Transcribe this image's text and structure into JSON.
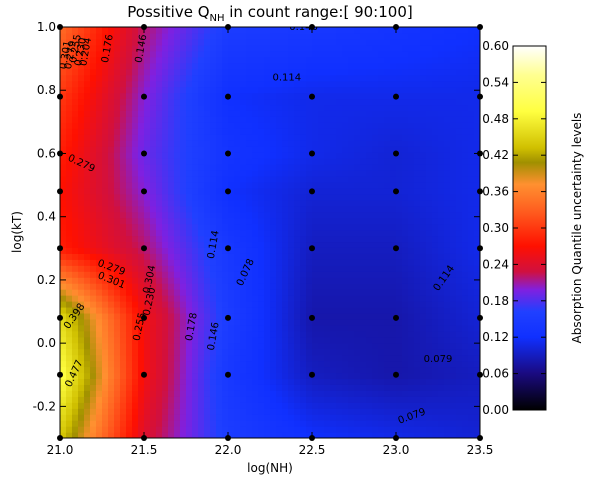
{
  "chart_data": {
    "type": "heatmap",
    "title": {
      "main": "Possitive Q",
      "sub": "NH",
      "rest": " in count range:[ 90:100]"
    },
    "xlabel": "log(NH)",
    "ylabel": "log(kT)",
    "xlim": [
      21.0,
      23.5
    ],
    "ylim": [
      -0.3,
      1.0
    ],
    "x_ticks": [
      "21.0",
      "21.5",
      "22.0",
      "22.5",
      "23.0",
      "23.5"
    ],
    "x_tick_values": [
      21.0,
      21.5,
      22.0,
      22.5,
      23.0,
      23.5
    ],
    "y_ticks": [
      "-0.2",
      "0.0",
      "0.2",
      "0.4",
      "0.6",
      "0.8",
      "1.0"
    ],
    "y_tick_values": [
      -0.2,
      0.0,
      0.2,
      0.4,
      0.6,
      0.8,
      1.0
    ],
    "colorbar": {
      "label": "Absorption Quantile uncertainty levels",
      "range": [
        0.0,
        0.6
      ],
      "ticks": [
        "0.00",
        "0.06",
        "0.12",
        "0.18",
        "0.24",
        "0.30",
        "0.36",
        "0.42",
        "0.48",
        "0.54",
        "0.60"
      ],
      "tick_values": [
        0.0,
        0.06,
        0.12,
        0.18,
        0.24,
        0.3,
        0.36,
        0.42,
        0.48,
        0.54,
        0.6
      ]
    },
    "grid_x": [
      21.0,
      21.5,
      22.0,
      22.5,
      23.0,
      23.5
    ],
    "grid_y": [
      -0.3,
      -0.1,
      0.08,
      0.3,
      0.48,
      0.6,
      0.78,
      1.0
    ],
    "values": [
      [
        0.44,
        0.24,
        0.15,
        0.12,
        0.11,
        0.1
      ],
      [
        0.5,
        0.26,
        0.14,
        0.09,
        0.08,
        0.09
      ],
      [
        0.46,
        0.26,
        0.15,
        0.08,
        0.08,
        0.1
      ],
      [
        0.28,
        0.22,
        0.14,
        0.09,
        0.09,
        0.11
      ],
      [
        0.27,
        0.2,
        0.12,
        0.1,
        0.1,
        0.11
      ],
      [
        0.28,
        0.19,
        0.13,
        0.11,
        0.1,
        0.11
      ],
      [
        0.3,
        0.2,
        0.12,
        0.11,
        0.11,
        0.11
      ],
      [
        0.34,
        0.22,
        0.15,
        0.14,
        0.13,
        0.12
      ]
    ],
    "contour_labels": [
      {
        "text": "0.301",
        "x": 21.05,
        "y": 0.91,
        "angle": -80
      },
      {
        "text": "0.279",
        "x": 21.08,
        "y": 0.91,
        "angle": -80
      },
      {
        "text": "0.255",
        "x": 21.11,
        "y": 0.93,
        "angle": -80
      },
      {
        "text": "0.230",
        "x": 21.14,
        "y": 0.92,
        "angle": -80
      },
      {
        "text": "0.204",
        "x": 21.17,
        "y": 0.92,
        "angle": -80
      },
      {
        "text": "0.176",
        "x": 21.3,
        "y": 0.93,
        "angle": -80
      },
      {
        "text": "0.146",
        "x": 21.5,
        "y": 0.93,
        "angle": -80
      },
      {
        "text": "0.146",
        "x": 22.45,
        "y": 0.99,
        "angle": 0
      },
      {
        "text": "0.114",
        "x": 22.35,
        "y": 0.83,
        "angle": 0
      },
      {
        "text": "0.279",
        "x": 21.12,
        "y": 0.56,
        "angle": 25
      },
      {
        "text": "0.114",
        "x": 21.93,
        "y": 0.31,
        "angle": -80
      },
      {
        "text": "0.279",
        "x": 21.3,
        "y": 0.23,
        "angle": 20
      },
      {
        "text": "0.301",
        "x": 21.3,
        "y": 0.19,
        "angle": 22
      },
      {
        "text": "0.304",
        "x": 21.55,
        "y": 0.2,
        "angle": -78
      },
      {
        "text": "0.230",
        "x": 21.55,
        "y": 0.13,
        "angle": -78
      },
      {
        "text": "0.255",
        "x": 21.49,
        "y": 0.05,
        "angle": -78
      },
      {
        "text": "0.398",
        "x": 21.1,
        "y": 0.08,
        "angle": -55
      },
      {
        "text": "0.178",
        "x": 21.8,
        "y": 0.05,
        "angle": -80
      },
      {
        "text": "0.146",
        "x": 21.93,
        "y": 0.02,
        "angle": -80
      },
      {
        "text": "0.078",
        "x": 22.12,
        "y": 0.22,
        "angle": -65
      },
      {
        "text": "0.114",
        "x": 23.3,
        "y": 0.2,
        "angle": -55
      },
      {
        "text": "0.477",
        "x": 21.1,
        "y": -0.1,
        "angle": -65
      },
      {
        "text": "0.079",
        "x": 23.25,
        "y": -0.06,
        "angle": 0
      },
      {
        "text": "0.079",
        "x": 23.1,
        "y": -0.24,
        "angle": -20
      }
    ],
    "grid": false,
    "legend": "colorbar-right"
  }
}
